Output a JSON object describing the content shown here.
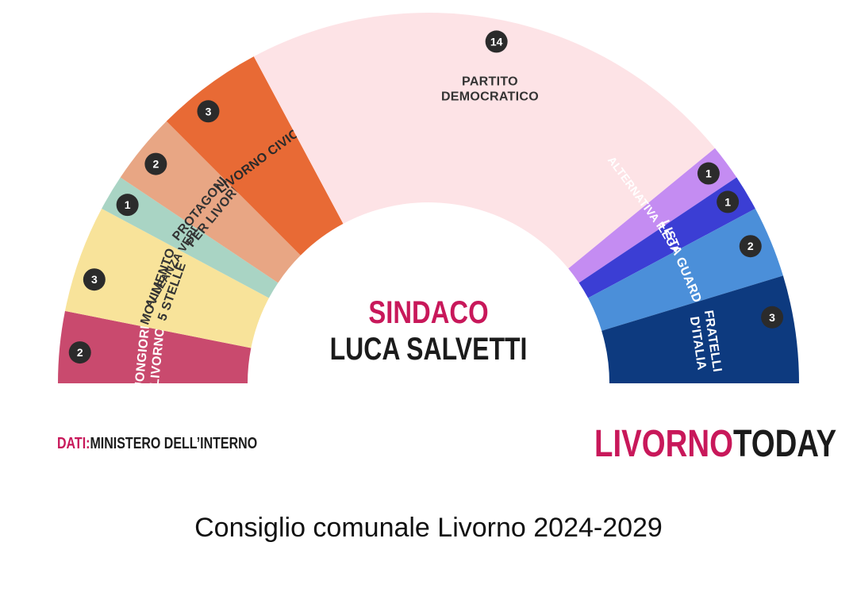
{
  "chart_data": {
    "type": "parliament",
    "title": "",
    "segments": [
      {
        "party": "BUONGIORNO LIVORNO",
        "label_lines": [
          "BUONGIORNO",
          "LIVORNO"
        ],
        "seats": 2,
        "color": "#c94a6e",
        "text_color": "#ffffff"
      },
      {
        "party": "MOVIMENTO 5 STELLE",
        "label_lines": [
          "MOVIMENTO",
          "5 STELLE"
        ],
        "seats": 3,
        "color": "#f8e39a",
        "text_color": "#333333"
      },
      {
        "party": "ALLEANZA VERDI SINISTRA",
        "label_lines": [
          "ALLEANZA VERDI SINISTRA"
        ],
        "seats": 1,
        "color": "#a9d4c4",
        "text_color": "#333333"
      },
      {
        "party": "PROTAGONISTI PER LIVORNO",
        "label_lines": [
          "PROTAGONISTI",
          "PER LIVORNO"
        ],
        "seats": 2,
        "color": "#e8a684",
        "text_color": "#333333"
      },
      {
        "party": "LIVORNO CIVICA",
        "label_lines": [
          "LIVORNO CIVICA"
        ],
        "seats": 3,
        "color": "#e86a35",
        "text_color": "#2a2a2a"
      },
      {
        "party": "PARTITO DEMOCRATICO",
        "label_lines": [
          "PARTITO",
          "DEMOCRATICO"
        ],
        "seats": 14,
        "color": "#fde3e6",
        "text_color": "#333333"
      },
      {
        "party": "ALTERNATIVA POPOLARE",
        "label_lines": [
          "ALTERNATIVA POPOLARE"
        ],
        "seats": 1,
        "color": "#c48cf2",
        "text_color": "#ffffff"
      },
      {
        "party": "LEGA",
        "label_lines": [
          "LEGA"
        ],
        "seats": 1,
        "color": "#3b3ed4",
        "text_color": "#ffffff"
      },
      {
        "party": "LISTA GUARDUCCI",
        "label_lines": [
          "LISTA GUARDUCCI"
        ],
        "seats": 2,
        "color": "#4b8fd9",
        "text_color": "#ffffff"
      },
      {
        "party": "FRATELLI D'ITALIA",
        "label_lines": [
          "FRATELLI",
          "D'ITALIA"
        ],
        "seats": 3,
        "color": "#0d3a7f",
        "text_color": "#ffffff"
      }
    ],
    "total_seats": 32,
    "legend": "none",
    "grid": false
  },
  "mayor": {
    "role": "SINDACO",
    "name": "LUCA SALVETTI"
  },
  "source": {
    "prefix": "DATI:",
    "name": "MINISTERO DELL’INTERNO"
  },
  "brand": {
    "part1": "LIVORNO",
    "part2": "TODAY"
  },
  "caption": "Consiglio comunale Livorno 2024-2029",
  "badge_color": "#2b2b2b",
  "accent": "#c8185a"
}
